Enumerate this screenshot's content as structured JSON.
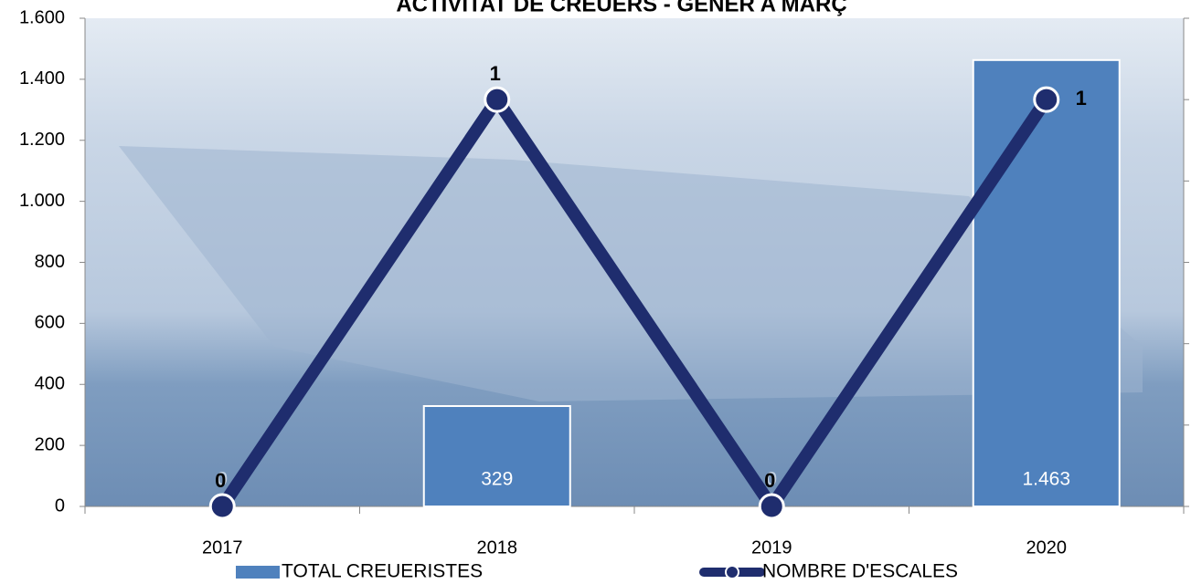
{
  "chart_data": {
    "type": "bar_line",
    "title": "ACTIVITAT DE CREUERS - GENER A MARÇ",
    "categories": [
      "2017",
      "2018",
      "2019",
      "2020"
    ],
    "series": [
      {
        "name": "TOTAL CREUERISTES",
        "type": "bar",
        "color": "#4f81bd",
        "values": [
          0,
          329,
          0,
          1463
        ],
        "value_labels": [
          "0",
          "329",
          "0",
          "1.463"
        ]
      },
      {
        "name": "NOMBRE D'ESCALES",
        "type": "line",
        "axis": "y2",
        "color": "#1f2d6e",
        "values": [
          0,
          1,
          0,
          1
        ]
      }
    ],
    "ylim": [
      0,
      1600
    ],
    "yticks": [
      0,
      200,
      400,
      600,
      800,
      {
        "value": 1000,
        "label": "1.000"
      },
      {
        "value": 1200,
        "label": "1.200"
      },
      {
        "value": 1400,
        "label": "1.400"
      },
      {
        "value": 1600,
        "label": "1.600"
      }
    ],
    "y2lim": [
      0,
      1.2
    ],
    "y2ticks": [
      0,
      0.2,
      0.4,
      0.6,
      0.8,
      1,
      1.2
    ],
    "legend": "bottom"
  }
}
